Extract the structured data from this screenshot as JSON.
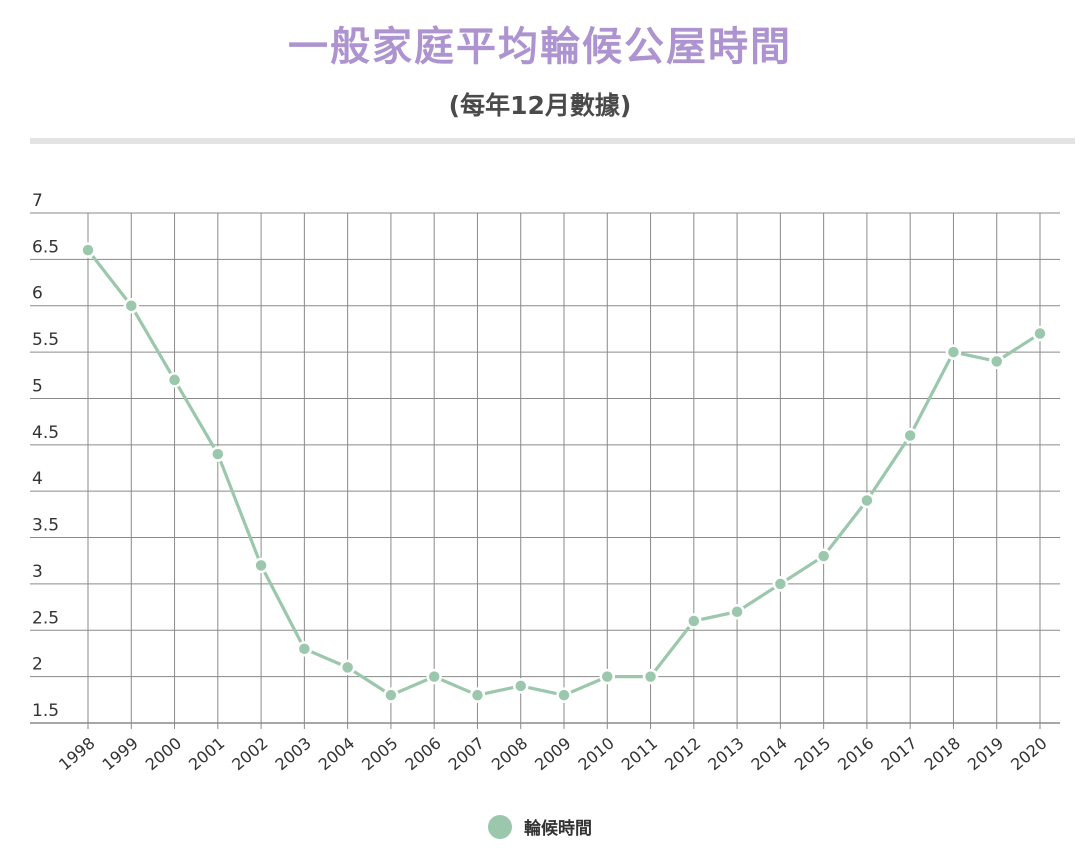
{
  "title": "一般家庭平均輪候公屋時間",
  "subtitle": "(每年12月數據)",
  "colors": {
    "title": "#ad93cf",
    "series": "#9bc7ad",
    "grid": "#8a8a8a",
    "axis_text": "#333333"
  },
  "chart_data": {
    "type": "line",
    "title": "一般家庭平均輪候公屋時間",
    "subtitle": "(每年12月數據)",
    "xlabel": "",
    "ylabel": "",
    "categories": [
      "1998",
      "1999",
      "2000",
      "2001",
      "2002",
      "2003",
      "2004",
      "2005",
      "2006",
      "2007",
      "2008",
      "2009",
      "2010",
      "2011",
      "2012",
      "2013",
      "2014",
      "2015",
      "2016",
      "2017",
      "2018",
      "2019",
      "2020"
    ],
    "series": [
      {
        "name": "輪候時間",
        "values": [
          6.6,
          6.0,
          5.2,
          4.4,
          3.2,
          2.3,
          2.1,
          1.8,
          2.0,
          1.8,
          1.9,
          1.8,
          2.0,
          2.0,
          2.6,
          2.7,
          3.0,
          3.3,
          3.9,
          4.6,
          5.5,
          5.4,
          5.7
        ]
      }
    ],
    "ylim": [
      1.5,
      7
    ],
    "yticks": [
      "1.5",
      "2",
      "2.5",
      "3",
      "3.5",
      "4",
      "4.5",
      "5",
      "5.5",
      "6",
      "6.5",
      "7"
    ],
    "grid": true,
    "legend": "bottom-center"
  }
}
